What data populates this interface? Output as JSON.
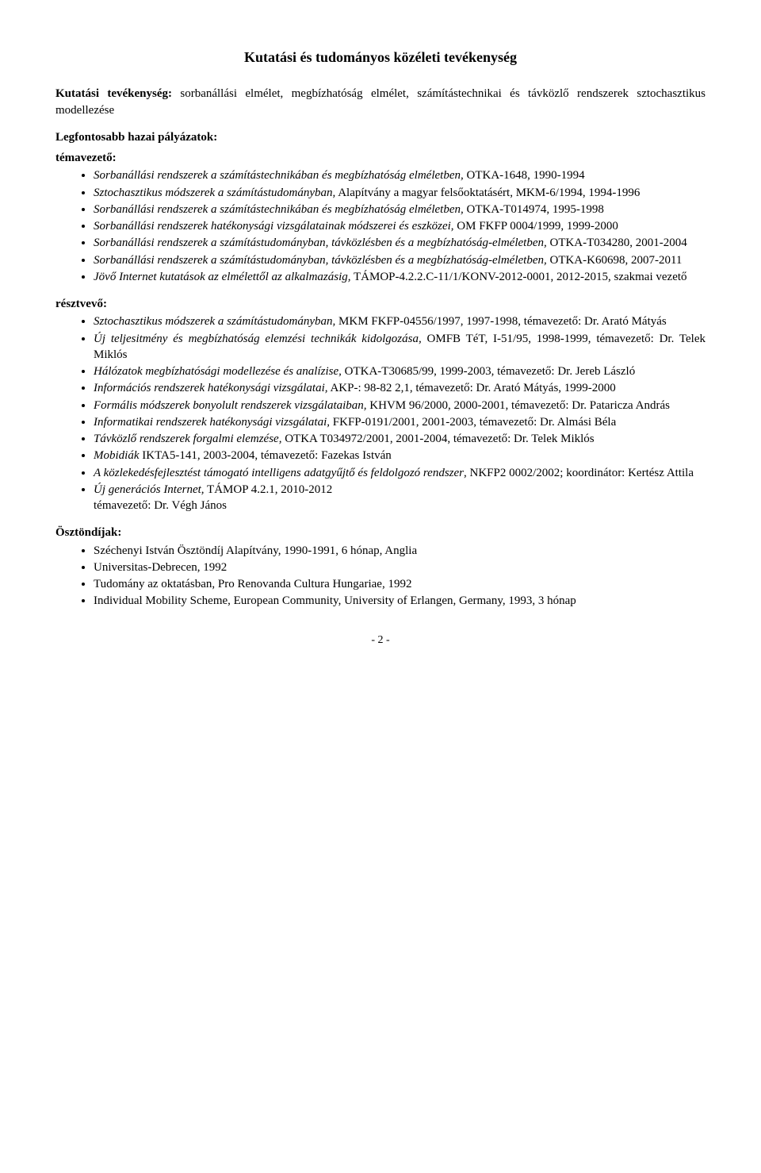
{
  "title": "Kutatási és tudományos közéleti tevékenység",
  "intro_label": "Kutatási tevékenység:",
  "intro_text": " sorbanállási elmélet, megbízhatóság elmélet, számítástechnikai és távközlő rendszerek sztochasztikus modellezése",
  "grants_heading": "Legfontosabb hazai pályázatok:",
  "lead_label": "témavezető:",
  "lead_items": [
    {
      "it": "Sorbanállási rendszerek a számítástechnikában és megbízhatóság elméletben,",
      "rest": " OTKA-1648, 1990-1994"
    },
    {
      "it": "Sztochasztikus módszerek a számítástudományban,",
      "rest": " Alapítvány a magyar felsőoktatásért, MKM-6/1994, 1994-1996"
    },
    {
      "it": "Sorbanállási rendszerek a számítástechnikában és megbízhatóság elméletben,",
      "rest": " OTKA-T014974, 1995-1998"
    },
    {
      "it": "Sorbanállási rendszerek hatékonysági vizsgálatainak módszerei és eszközei",
      "rest": ", OM FKFP 0004/1999, 1999-2000"
    },
    {
      "it": "Sorbanállási rendszerek a számítástudományban, távközlésben és a megbízhatóság-elméletben,",
      "rest": " OTKA-T034280, 2001-2004"
    },
    {
      "it": "Sorbanállási rendszerek a számítástudományban, távközlésben és a megbízhatóság-elméletben,",
      "rest": " OTKA-K60698, 2007-2011"
    },
    {
      "it": "Jövő Internet kutatások az elmélettől az alkalmazásig,",
      "rest": " TÁMOP-4.2.2.C-11/1/KONV-2012-0001, 2012-2015, szakmai vezető"
    }
  ],
  "part_label": "résztvevő:",
  "part_items": [
    {
      "it": "Sztochasztikus módszerek a számítástudományban,",
      "rest": " MKM FKFP-04556/1997, 1997-1998, témavezető: Dr. Arató Mátyás"
    },
    {
      "it": "Új teljesitmény és megbízhatóság elemzési technikák kidolgozása,",
      "rest": " OMFB TéT,  I-51/95, 1998-1999, témavezető: Dr. Telek Miklós"
    },
    {
      "it": "Hálózatok megbízhatósági modellezése és analízise,",
      "rest": " OTKA-T30685/99, 1999-2003, témavezető: Dr. Jereb László"
    },
    {
      "it": "Információs rendszerek hatékonysági vizsgálatai,",
      "rest": "  AKP-: 98-82 2,1, témavezető: Dr. Arató Mátyás, 1999-2000"
    },
    {
      "it": "Formális módszerek bonyolult rendszerek vizsgálataiban,",
      "rest": "  KHVM  96/2000, 2000-2001, témavezető: Dr. Pataricza András"
    },
    {
      "it": "Informatikai rendszerek hatékonysági vizsgálatai,",
      "rest": " FKFP-0191/2001, 2001-2003, témavezető: Dr. Almási Béla"
    },
    {
      "it": "Távközlő rendszerek forgalmi elemzése,",
      "rest": " OTKA T034972/2001, 2001-2004, témavezető: Dr. Telek Miklós"
    },
    {
      "it": "Mobidiák",
      "rest": " IKTA5-141, 2003-2004, témavezető: Fazekas István"
    },
    {
      "it": "A közlekedésfejlesztést támogató intelligens adatgyűjtő és feldolgozó rendszer",
      "rest": ", NKFP2 0002/2002;  koordinátor: Kertész Attila"
    },
    {
      "it": "Új generációs Internet,",
      "rest": " TÁMOP 4.2.1, 2010-2012\ntémavezető: Dr. Végh János"
    }
  ],
  "scholar_label": "Ösztöndíjak:",
  "scholar_items": [
    "Széchenyi István Ösztöndíj Alapítvány, 1990-1991, 6 hónap, Anglia",
    "Universitas-Debrecen, 1992",
    "Tudomány az oktatásban, Pro Renovanda Cultura Hungariae, 1992",
    "Individual Mobility Scheme, European Community, University of Erlangen, Germany, 1993, 3 hónap"
  ],
  "page_number": "- 2 -"
}
